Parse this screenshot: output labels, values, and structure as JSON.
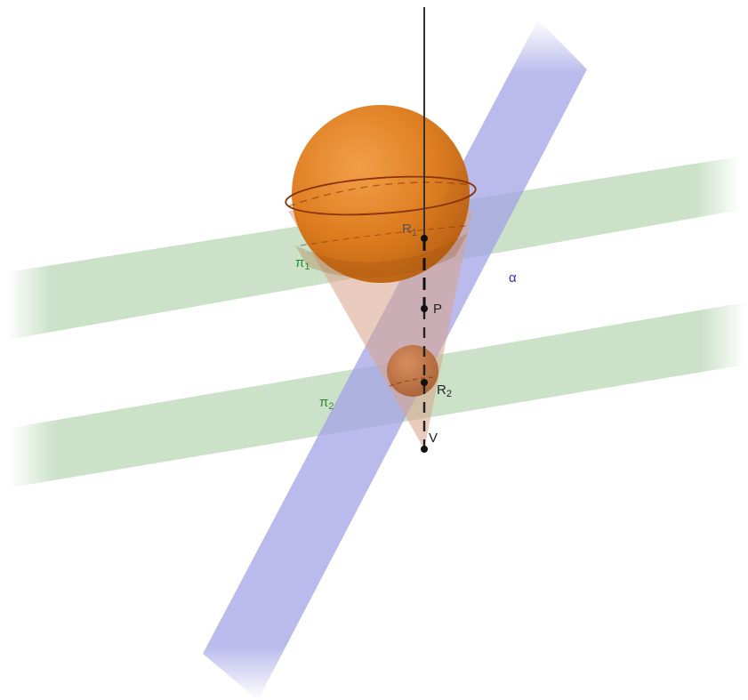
{
  "labels": {
    "plane_pi1": {
      "base": "π",
      "sub": "1"
    },
    "plane_pi2": {
      "base": "π",
      "sub": "2"
    },
    "plane_alpha": {
      "base": "α"
    },
    "point_r1": {
      "base": "R",
      "sub": "1"
    },
    "point_r2": {
      "base": "R",
      "sub": "2"
    },
    "point_p": {
      "base": "P"
    },
    "point_v": {
      "base": "V"
    }
  },
  "colors": {
    "plane_pi": "#a9cfa4",
    "plane_pi_label": "#2f8a2f",
    "plane_alpha": "#a3a3e6",
    "plane_alpha_label": "#3030c8",
    "sphere": "#e07a1a",
    "sphere_dark": "#9a4e0c",
    "cone": "#d9a38a",
    "axis_line": "#333333",
    "point": "#111111",
    "point_label": "#222222"
  }
}
